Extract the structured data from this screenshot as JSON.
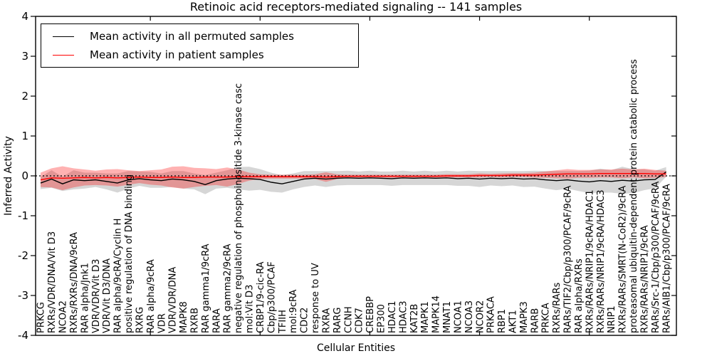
{
  "colors": {
    "background": "#ffffff",
    "axis": "#000000",
    "permuted_line": "#000000",
    "patient_line": "#ff0000",
    "permuted_band": "rgba(128,128,128,0.32)",
    "patient_band": "rgba(255,0,0,0.30)"
  },
  "chart_data": {
    "type": "line",
    "title": "Retinoic acid receptors-mediated signaling -- 141 samples",
    "xlabel": "Cellular Entities",
    "ylabel": "Inferred Activity",
    "ylim": [
      -4,
      4
    ],
    "yticks": [
      -4,
      -3,
      -2,
      -1,
      0,
      1,
      2,
      3,
      4
    ],
    "grid": false,
    "zero_reference_line": {
      "y": 0,
      "style": "dotted",
      "color": "#000000"
    },
    "legend": {
      "position": "upper left",
      "entries": [
        {
          "label": "Mean activity in all permuted samples",
          "color": "#000000"
        },
        {
          "label": "Mean activity in patient samples",
          "color": "#ff0000"
        }
      ]
    },
    "categories": [
      "PRKCG",
      "RXRs/VDR/DNA/Vit D3",
      "NCOA2",
      "RXRs/RXRs/DNA/9cRA",
      "RAR alpha/Jnk1",
      "VDR/VDR/Vit D3",
      "VDR/Vit D3/DNA",
      "RAR alpha/9cRA/Cyclin H",
      "positive regulation of DNA binding",
      "RXRG",
      "RAR alpha/9cRA",
      "VDR",
      "VDR/VDR/DNA",
      "MAPK8",
      "RXRB",
      "RAR gamma1/9cRA",
      "RARA",
      "RAR gamma2/9cRA",
      "negative regulation of phosphoinositide 3-kinase casc",
      "mol:Vit D3",
      "CRBP1/9-cic-RA",
      "Cbp/p300/PCAF",
      "TFIIH",
      "mol:9cRA",
      "CDC2",
      "response to UV",
      "RXRA",
      "RARG",
      "CCNH",
      "CDK7",
      "CREBBP",
      "EP300",
      "HDAC1",
      "HDAC3",
      "KAT2B",
      "MAPK1",
      "MAPK14",
      "MNAT1",
      "NCOA1",
      "NCOA3",
      "NCOR2",
      "PRKACA",
      "RBP1",
      "AKT1",
      "MAPK3",
      "RARB",
      "PRKCA",
      "RXRs/RARs",
      "RARs/TIF2/Cbp/p300/PCAF/9cRA",
      "RAR alpha/RXRs",
      "RXRs/RARs/NRIP1/9cRA/HDAC1",
      "RXRs/RARs/NRIP1/9cRA/HDAC3",
      "NRIP1",
      "RXRs/RARs/SMRT(N-CoR2)/9cRA",
      "proteasomal ubiquitin-dependent protein catabolic process",
      "RXRs/RARs/NRIP1/9cRA",
      "RARs/Src-1/Cbp/p300/PCAF/9cRA",
      "RARs/AIB1/Cbp/p300/PCAF/9cRA"
    ],
    "series": [
      {
        "name": "Mean activity in all permuted samples",
        "color": "#000000",
        "band_color": "rgba(128,128,128,0.32)",
        "values": [
          -0.18,
          -0.08,
          -0.2,
          -0.1,
          -0.12,
          -0.1,
          -0.14,
          -0.18,
          -0.1,
          -0.07,
          -0.1,
          -0.12,
          -0.08,
          -0.1,
          -0.14,
          -0.22,
          -0.12,
          -0.08,
          -0.06,
          -0.07,
          -0.09,
          -0.16,
          -0.2,
          -0.14,
          -0.08,
          -0.06,
          -0.08,
          -0.06,
          -0.05,
          -0.06,
          -0.05,
          -0.06,
          -0.07,
          -0.05,
          -0.06,
          -0.05,
          -0.06,
          -0.05,
          -0.07,
          -0.06,
          -0.08,
          -0.06,
          -0.07,
          -0.06,
          -0.08,
          -0.07,
          -0.1,
          -0.12,
          -0.1,
          -0.13,
          -0.15,
          -0.12,
          -0.14,
          -0.11,
          -0.13,
          -0.1,
          -0.09,
          0.1
        ],
        "band_halfwidth": [
          0.15,
          0.22,
          0.18,
          0.24,
          0.2,
          0.18,
          0.2,
          0.24,
          0.22,
          0.18,
          0.2,
          0.18,
          0.2,
          0.22,
          0.2,
          0.24,
          0.2,
          0.22,
          0.28,
          0.3,
          0.26,
          0.24,
          0.22,
          0.2,
          0.2,
          0.18,
          0.2,
          0.18,
          0.18,
          0.17,
          0.18,
          0.17,
          0.18,
          0.18,
          0.17,
          0.18,
          0.17,
          0.18,
          0.18,
          0.19,
          0.2,
          0.18,
          0.19,
          0.18,
          0.2,
          0.2,
          0.22,
          0.24,
          0.22,
          0.25,
          0.28,
          0.3,
          0.28,
          0.34,
          0.3,
          0.26,
          0.22,
          0.12
        ]
      },
      {
        "name": "Mean activity in patient samples",
        "color": "#ff0000",
        "band_color": "rgba(255,0,0,0.30)",
        "values": [
          -0.1,
          -0.05,
          -0.06,
          -0.05,
          -0.04,
          -0.05,
          -0.04,
          -0.05,
          -0.04,
          -0.03,
          -0.04,
          -0.04,
          -0.03,
          -0.04,
          -0.04,
          -0.03,
          -0.03,
          -0.03,
          -0.02,
          -0.02,
          -0.02,
          -0.02,
          -0.02,
          -0.02,
          -0.02,
          -0.02,
          -0.03,
          -0.02,
          -0.01,
          -0.01,
          -0.01,
          -0.01,
          -0.01,
          -0.01,
          -0.01,
          -0.01,
          -0.01,
          0.0,
          0.0,
          0.0,
          0.01,
          0.01,
          0.01,
          0.02,
          0.02,
          0.02,
          0.03,
          0.04,
          0.05,
          0.05,
          0.05,
          0.06,
          0.06,
          0.06,
          0.06,
          0.06,
          0.05,
          0.05
        ],
        "band_halfwidth": [
          0.18,
          0.24,
          0.3,
          0.24,
          0.2,
          0.18,
          0.2,
          0.22,
          0.18,
          0.15,
          0.18,
          0.2,
          0.26,
          0.28,
          0.24,
          0.22,
          0.2,
          0.24,
          0.18,
          0.1,
          0.06,
          0.05,
          0.05,
          0.05,
          0.05,
          0.06,
          0.12,
          0.06,
          0.04,
          0.04,
          0.04,
          0.04,
          0.04,
          0.04,
          0.04,
          0.04,
          0.04,
          0.04,
          0.04,
          0.04,
          0.05,
          0.04,
          0.05,
          0.05,
          0.05,
          0.06,
          0.08,
          0.1,
          0.12,
          0.1,
          0.1,
          0.1,
          0.1,
          0.12,
          0.1,
          0.12,
          0.1,
          0.08
        ]
      }
    ]
  }
}
